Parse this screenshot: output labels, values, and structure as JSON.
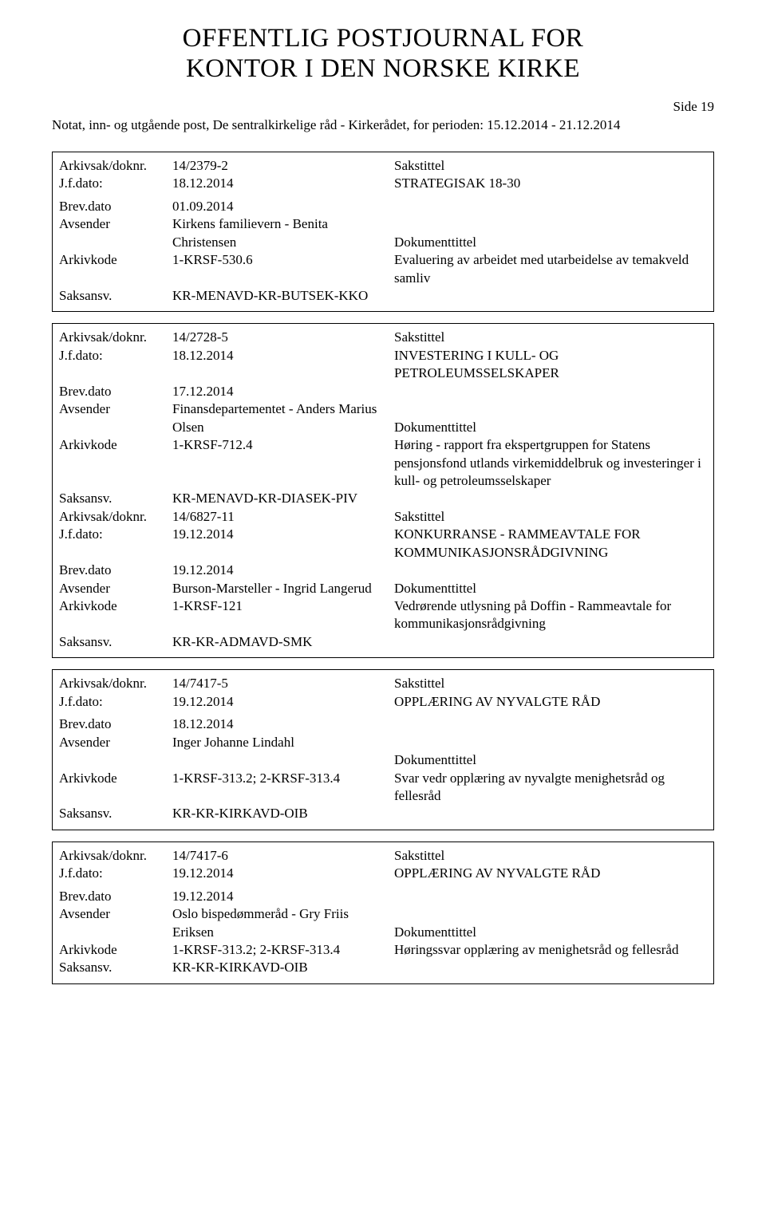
{
  "page": {
    "title_line1": "OFFENTLIG POSTJOURNAL FOR",
    "title_line2": "KONTOR I DEN NORSKE KIRKE",
    "page_number": "Side 19",
    "header": "Notat, inn- og utgående post, De sentralkirkelige råd - Kirkerådet, for perioden: 15.12.2014 - 21.12.2014",
    "labels": {
      "arkivsak": "Arkivsak/doknr.",
      "sakstittel": "Sakstittel",
      "jfdato": "J.f.dato:",
      "brevdato": "Brev.dato",
      "avsender": "Avsender",
      "arkivkode": "Arkivkode",
      "saksansv": "Saksansv.",
      "doktittel": "Dokumenttittel"
    }
  },
  "records": [
    {
      "id": "rec1",
      "arkivsak": "14/2379-2",
      "jfdato": "18.12.2014",
      "sakstittel": "STRATEGISAK 18-30",
      "brevdato": "01.09.2014",
      "avsender": "Kirkens familievern - Benita Christensen",
      "arkivkode": "1-KRSF-530.6",
      "saksansv": "KR-MENAVD-KR-BUTSEK-KKO",
      "doktittel": "Evaluering av arbeidet med utarbeidelse av temakveld samliv",
      "subrecords": []
    },
    {
      "id": "rec2",
      "arkivsak": "14/2728-5",
      "jfdato": "18.12.2014",
      "sakstittel": "INVESTERING I KULL- OG PETROLEUMSSELSKAPER",
      "brevdato": "17.12.2014",
      "avsender": "Finansdepartementet -  Anders Marius Olsen",
      "arkivkode": "1-KRSF-712.4",
      "saksansv": "KR-MENAVD-KR-DIASEK-PIV",
      "doktittel": "Høring  - rapport fra ekspertgruppen for Statens pensjonsfond utlands virkemiddelbruk og investeringer i kull- og petroleumsselskaper",
      "subrecords": [
        {
          "arkivsak": "14/6827-11",
          "jfdato": "19.12.2014",
          "sakstittel": "KONKURRANSE - RAMMEAVTALE FOR KOMMUNIKASJONSRÅDGIVNING",
          "brevdato": "19.12.2014",
          "avsender": "Burson-Marsteller - Ingrid Langerud",
          "arkivkode": "1-KRSF-121",
          "saksansv": "KR-KR-ADMAVD-SMK",
          "doktittel": "Vedrørende utlysning på Doffin - Rammeavtale for kommunikasjonsrådgivning"
        }
      ]
    },
    {
      "id": "rec3",
      "arkivsak": "14/7417-5",
      "jfdato": "19.12.2014",
      "sakstittel": "OPPLÆRING AV NYVALGTE RÅD",
      "brevdato": "18.12.2014",
      "avsender": "Inger Johanne Lindahl",
      "arkivkode": "1-KRSF-313.2; 2-KRSF-313.4",
      "saksansv": "KR-KR-KIRKAVD-OIB",
      "doktittel": "Svar  vedr opplæring av nyvalgte menighetsråd og fellesråd",
      "subrecords": []
    },
    {
      "id": "rec4",
      "arkivsak": "14/7417-6",
      "jfdato": "19.12.2014",
      "sakstittel": "OPPLÆRING AV NYVALGTE RÅD",
      "brevdato": "19.12.2014",
      "avsender": "Oslo bispedømmeråd - Gry Friis Eriksen",
      "arkivkode": "1-KRSF-313.2; 2-KRSF-313.4",
      "saksansv": "KR-KR-KIRKAVD-OIB",
      "doktittel": "Høringssvar opplæring av menighetsråd og fellesråd",
      "subrecords": []
    }
  ]
}
